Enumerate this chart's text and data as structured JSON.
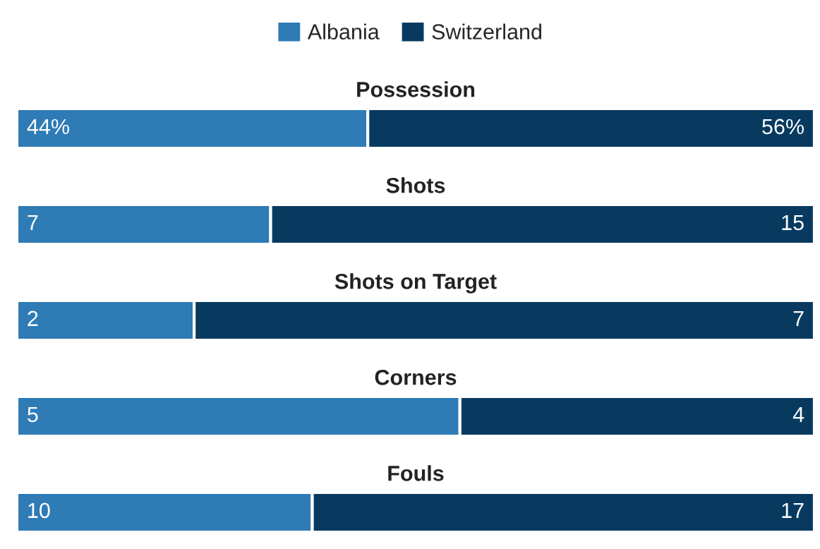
{
  "chart_data": [
    {
      "type": "bar",
      "title": "Possession",
      "orientation": "horizontal",
      "stacked": true,
      "categories": [
        null
      ],
      "tick_labels": false,
      "legend": "top",
      "series": [
        {
          "name": "Albania",
          "color": "#2e7bb6",
          "values": [
            44
          ],
          "value_labels": [
            "44%"
          ]
        },
        {
          "name": "Switzerland",
          "color": "#083a60",
          "values": [
            56
          ],
          "value_labels": [
            "56%"
          ]
        }
      ]
    },
    {
      "type": "bar",
      "title": "Shots",
      "orientation": "horizontal",
      "stacked": true,
      "categories": [
        null
      ],
      "tick_labels": false,
      "data_labels": true,
      "series": [
        {
          "color": "#2e7bb6",
          "values": [
            7
          ]
        },
        {
          "color": "#083a60",
          "values": [
            15
          ]
        }
      ]
    },
    {
      "type": "bar",
      "title": "Shots on Target",
      "orientation": "horizontal",
      "stacked": true,
      "categories": [
        null
      ],
      "tick_labels": false,
      "data_labels": true,
      "series": [
        {
          "color": "#2e7bb6",
          "values": [
            2
          ]
        },
        {
          "color": "#083a60",
          "values": [
            7
          ]
        }
      ]
    },
    {
      "type": "bar",
      "title": "Corners",
      "orientation": "horizontal",
      "stacked": true,
      "categories": [
        null
      ],
      "tick_labels": false,
      "data_labels": true,
      "series": [
        {
          "color": "#2e7bb6",
          "values": [
            5
          ]
        },
        {
          "color": "#083a60",
          "values": [
            4
          ]
        }
      ]
    },
    {
      "type": "bar",
      "title": "Fouls",
      "orientation": "horizontal",
      "stacked": true,
      "categories": [
        null
      ],
      "tick_labels": false,
      "data_labels": true,
      "series": [
        {
          "color": "#2e7bb6",
          "values": [
            10
          ]
        },
        {
          "color": "#083a60",
          "values": [
            17
          ]
        }
      ]
    }
  ]
}
